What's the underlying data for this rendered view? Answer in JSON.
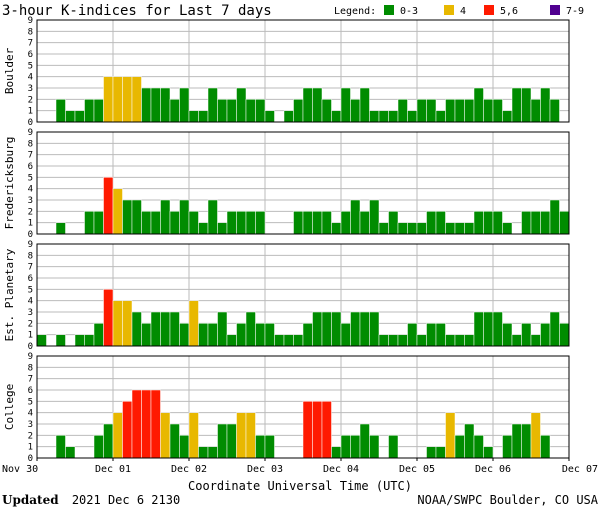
{
  "title": "3-hour K-indices for Last 7 days",
  "legend": {
    "label": "Legend:",
    "items": [
      {
        "label": "0-3",
        "color": "#008c00"
      },
      {
        "label": "4",
        "color": "#e8b800"
      },
      {
        "label": "5,6",
        "color": "#ff1a00"
      },
      {
        "label": "7-9",
        "color": "#500090"
      }
    ]
  },
  "footer": {
    "updated_label": "Updated",
    "updated_value": "2021 Dec  6 2130",
    "source": "NOAA/SWPC Boulder, CO USA"
  },
  "chart_data": {
    "type": "bar",
    "title": "3-hour K-indices for Last 7 days",
    "xlabel": "Coordinate Universal Time (UTC)",
    "x_ticks": [
      "Nov 30",
      "Dec 01",
      "Dec 02",
      "Dec 03",
      "Dec 04",
      "Dec 05",
      "Dec 06",
      "Dec 07"
    ],
    "y_ticks": [
      "0",
      "1",
      "2",
      "3",
      "4",
      "5",
      "6",
      "7",
      "8",
      "9"
    ],
    "ylim": [
      0,
      9
    ],
    "bins_per_day": 8,
    "grid": true,
    "color_scale": [
      {
        "range": "0-3",
        "color": "#008c00"
      },
      {
        "range": "4",
        "color": "#e8b800"
      },
      {
        "range": "5,6",
        "color": "#ff1a00"
      },
      {
        "range": "7-9",
        "color": "#500090"
      }
    ],
    "series": [
      {
        "name": "Boulder",
        "values": [
          0,
          0,
          2,
          1,
          1,
          2,
          2,
          4,
          4,
          4,
          4,
          3,
          3,
          3,
          2,
          3,
          1,
          1,
          3,
          2,
          2,
          3,
          2,
          2,
          1,
          0,
          1,
          2,
          3,
          3,
          2,
          1,
          3,
          2,
          3,
          1,
          1,
          1,
          2,
          1,
          2,
          2,
          1,
          2,
          2,
          2,
          3,
          2,
          2,
          1,
          3,
          3,
          2,
          3,
          2,
          0
        ]
      },
      {
        "name": "Fredericksburg",
        "values": [
          0,
          0,
          1,
          0,
          0,
          2,
          2,
          5,
          4,
          3,
          3,
          2,
          2,
          3,
          2,
          3,
          2,
          1,
          3,
          1,
          2,
          2,
          2,
          2,
          0,
          0,
          0,
          2,
          2,
          2,
          2,
          1,
          2,
          3,
          2,
          3,
          1,
          2,
          1,
          1,
          1,
          2,
          2,
          1,
          1,
          1,
          2,
          2,
          2,
          1,
          0,
          2,
          2,
          2,
          3,
          2
        ]
      },
      {
        "name": "Est. Planetary",
        "values": [
          1,
          0,
          1,
          0,
          1,
          1,
          2,
          5,
          4,
          4,
          3,
          2,
          3,
          3,
          3,
          2,
          4,
          2,
          2,
          3,
          1,
          2,
          3,
          2,
          2,
          1,
          1,
          1,
          2,
          3,
          3,
          3,
          2,
          3,
          3,
          3,
          1,
          1,
          1,
          2,
          1,
          2,
          2,
          1,
          1,
          1,
          3,
          3,
          3,
          2,
          1,
          2,
          1,
          2,
          3,
          2
        ]
      },
      {
        "name": "College",
        "values": [
          0,
          0,
          2,
          1,
          0,
          0,
          2,
          3,
          4,
          5,
          6,
          6,
          6,
          4,
          3,
          2,
          4,
          1,
          1,
          3,
          3,
          4,
          4,
          2,
          2,
          0,
          0,
          0,
          5,
          5,
          5,
          1,
          2,
          2,
          3,
          2,
          0,
          2,
          0,
          0,
          0,
          1,
          1,
          4,
          2,
          3,
          2,
          1,
          0,
          2,
          3,
          3,
          4,
          2
        ]
      }
    ]
  }
}
